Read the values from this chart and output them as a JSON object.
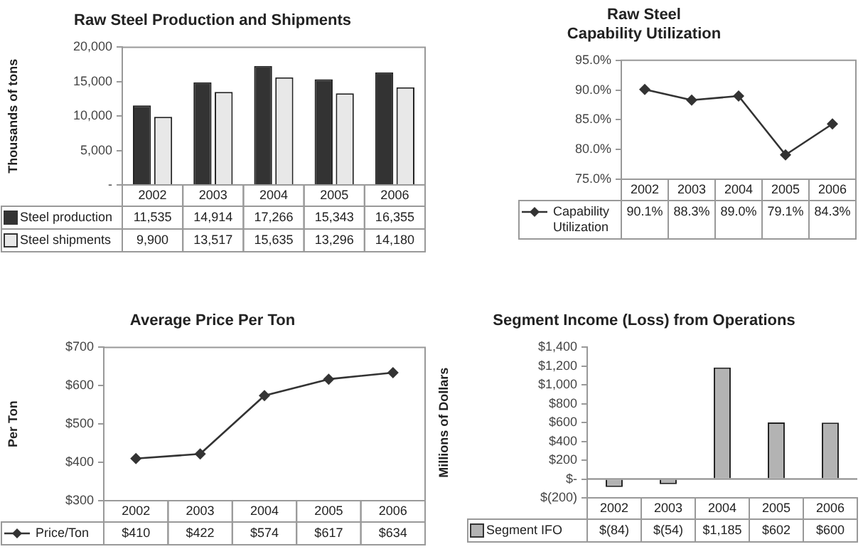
{
  "chart_data": [
    {
      "type": "bar",
      "title": "Raw Steel Production and Shipments",
      "ylabel": "Thousands of tons",
      "categories": [
        "2002",
        "2003",
        "2004",
        "2005",
        "2006"
      ],
      "series": [
        {
          "name": "Steel production",
          "color": "#333333",
          "values": [
            11535,
            14914,
            17266,
            15343,
            16355
          ],
          "value_labels": [
            "11,535",
            "14,914",
            "17,266",
            "15,343",
            "16,355"
          ]
        },
        {
          "name": "Steel shipments",
          "color": "#e8e8e8",
          "values": [
            9900,
            13517,
            15635,
            13296,
            14180
          ],
          "value_labels": [
            "9,900",
            "13,517",
            "15,635",
            "13,296",
            "14,180"
          ]
        }
      ],
      "ylim": [
        0,
        20000
      ],
      "yticks": [
        {
          "value": 0,
          "label": "-"
        },
        {
          "value": 5000,
          "label": "5,000"
        },
        {
          "value": 10000,
          "label": "10,000"
        },
        {
          "value": 15000,
          "label": "15,000"
        },
        {
          "value": 20000,
          "label": "20,000"
        }
      ],
      "legend": "bottom"
    },
    {
      "type": "line",
      "title": "Raw Steel\nCapability Utilization",
      "categories": [
        "2002",
        "2003",
        "2004",
        "2005",
        "2006"
      ],
      "series": [
        {
          "name": "Capability Utilization",
          "color": "#333333",
          "values": [
            90.1,
            88.3,
            89.0,
            79.1,
            84.3
          ],
          "value_labels": [
            "90.1%",
            "88.3%",
            "89.0%",
            "79.1%",
            "84.3%"
          ]
        }
      ],
      "ylim": [
        75,
        95
      ],
      "yticks": [
        {
          "value": 75,
          "label": "75.0%"
        },
        {
          "value": 80,
          "label": "80.0%"
        },
        {
          "value": 85,
          "label": "85.0%"
        },
        {
          "value": 90,
          "label": "90.0%"
        },
        {
          "value": 95,
          "label": "95.0%"
        }
      ],
      "legend": "bottom",
      "marker": "diamond"
    },
    {
      "type": "line",
      "title": "Average Price Per Ton",
      "ylabel": "Per Ton",
      "categories": [
        "2002",
        "2003",
        "2004",
        "2005",
        "2006"
      ],
      "series": [
        {
          "name": "Price/Ton",
          "color": "#333333",
          "values": [
            410,
            422,
            574,
            617,
            634
          ],
          "value_labels": [
            "$410",
            "$422",
            "$574",
            "$617",
            "$634"
          ]
        }
      ],
      "ylim": [
        300,
        700
      ],
      "yticks": [
        {
          "value": 300,
          "label": "$300"
        },
        {
          "value": 400,
          "label": "$400"
        },
        {
          "value": 500,
          "label": "$500"
        },
        {
          "value": 600,
          "label": "$600"
        },
        {
          "value": 700,
          "label": "$700"
        }
      ],
      "legend": "bottom",
      "marker": "diamond"
    },
    {
      "type": "bar",
      "title": "Segment Income (Loss) from Operations",
      "ylabel": "Millions of Dollars",
      "categories": [
        "2002",
        "2003",
        "2004",
        "2005",
        "2006"
      ],
      "series": [
        {
          "name": "Segment IFO",
          "color": "#b3b3b3",
          "values": [
            -84,
            -54,
            1185,
            602,
            600
          ],
          "value_labels": [
            "$(84)",
            "$(54)",
            "$1,185",
            "$602",
            "$600"
          ]
        }
      ],
      "ylim": [
        -200,
        1400
      ],
      "yticks": [
        {
          "value": -200,
          "label": "$(200)"
        },
        {
          "value": 0,
          "label": "$-"
        },
        {
          "value": 200,
          "label": "$200"
        },
        {
          "value": 400,
          "label": "$400"
        },
        {
          "value": 600,
          "label": "$600"
        },
        {
          "value": 800,
          "label": "$800"
        },
        {
          "value": 1000,
          "label": "$1,000"
        },
        {
          "value": 1200,
          "label": "$1,200"
        },
        {
          "value": 1400,
          "label": "$1,400"
        }
      ],
      "legend": "bottom"
    }
  ]
}
